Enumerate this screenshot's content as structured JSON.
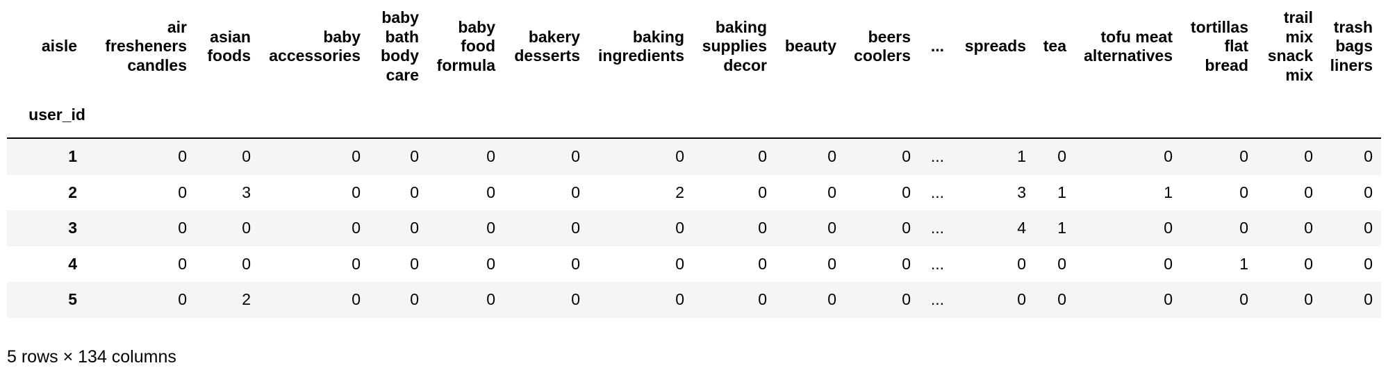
{
  "table": {
    "columns_axis_name": "aisle",
    "index_name": "user_id",
    "columns": [
      "air fresheners candles",
      "asian foods",
      "baby accessories",
      "baby bath body care",
      "baby food formula",
      "bakery desserts",
      "baking ingredients",
      "baking supplies decor",
      "beauty",
      "beers coolers",
      "...",
      "spreads",
      "tea",
      "tofu meat alternatives",
      "tortillas flat bread",
      "trail mix snack mix",
      "trash bags liners"
    ],
    "rows": [
      {
        "index": "1",
        "values": [
          "0",
          "0",
          "0",
          "0",
          "0",
          "0",
          "0",
          "0",
          "0",
          "0",
          "...",
          "1",
          "0",
          "0",
          "0",
          "0",
          "0"
        ]
      },
      {
        "index": "2",
        "values": [
          "0",
          "3",
          "0",
          "0",
          "0",
          "0",
          "2",
          "0",
          "0",
          "0",
          "...",
          "3",
          "1",
          "1",
          "0",
          "0",
          "0"
        ]
      },
      {
        "index": "3",
        "values": [
          "0",
          "0",
          "0",
          "0",
          "0",
          "0",
          "0",
          "0",
          "0",
          "0",
          "...",
          "4",
          "1",
          "0",
          "0",
          "0",
          "0"
        ]
      },
      {
        "index": "4",
        "values": [
          "0",
          "0",
          "0",
          "0",
          "0",
          "0",
          "0",
          "0",
          "0",
          "0",
          "...",
          "0",
          "0",
          "0",
          "1",
          "0",
          "0"
        ]
      },
      {
        "index": "5",
        "values": [
          "0",
          "2",
          "0",
          "0",
          "0",
          "0",
          "0",
          "0",
          "0",
          "0",
          "...",
          "0",
          "0",
          "0",
          "0",
          "0",
          "0"
        ]
      }
    ]
  },
  "footer": {
    "text": "5 rows × 134 columns"
  },
  "colors": {
    "stripe": "#f5f5f5",
    "header_border": "#000000",
    "text": "#000000",
    "background": "#ffffff"
  }
}
